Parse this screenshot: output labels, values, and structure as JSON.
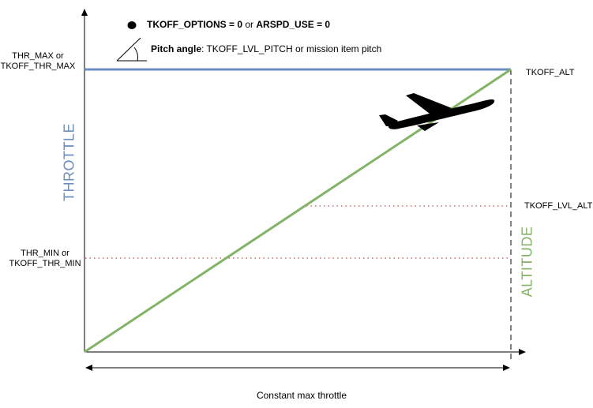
{
  "legend": {
    "condition_bold_1": "TKOFF_OPTIONS = 0",
    "condition_or": " or ",
    "condition_bold_2": "ARSPD_USE = 0",
    "pitch_bold": "Pitch angle",
    "pitch_text": ": TKOFF_LVL_PITCH or mission item pitch"
  },
  "left_labels": {
    "thr_max_line1": "THR_MAX or",
    "thr_max_line2": "TKOFF_THR_MAX",
    "thr_min_line1": "THR_MIN or",
    "thr_min_line2": "TKOFF_THR_MIN"
  },
  "right_labels": {
    "tkoff_alt": "TKOFF_ALT",
    "tkoff_lvl_alt": "TKOFF_LVL_ALT"
  },
  "axis_titles": {
    "throttle": "THROTTLE",
    "altitude": "ALTITUDE"
  },
  "bottom_label": "Constant max throttle",
  "colors": {
    "throttle": "#6c8ebf",
    "altitude": "#82b366",
    "threshold_dots": "#b85450",
    "axes": "#000000"
  },
  "icons": [
    "black-dot-icon",
    "angle-icon",
    "airplane-icon"
  ]
}
